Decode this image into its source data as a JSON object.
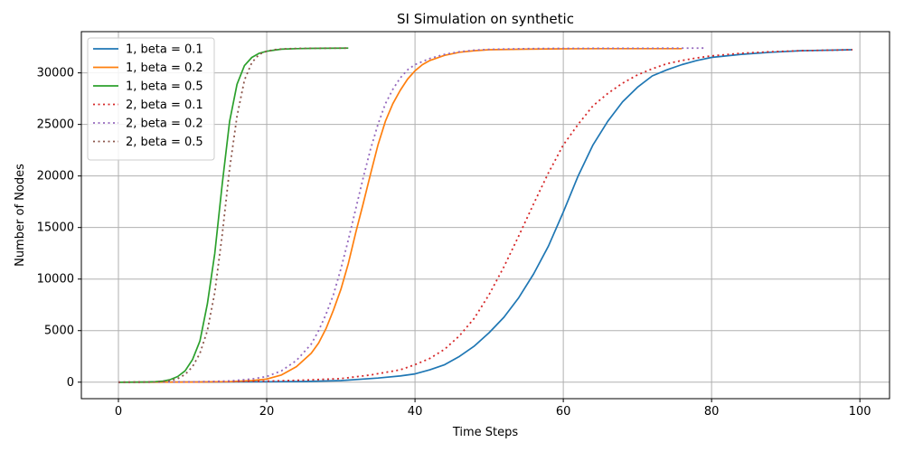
{
  "chart_data": {
    "type": "line",
    "title": "SI Simulation on synthetic",
    "xlabel": "Time Steps",
    "ylabel": "Number of Nodes",
    "xlim": [
      -5,
      104
    ],
    "ylim": [
      -1600,
      34000
    ],
    "xticks": [
      0,
      20,
      40,
      60,
      80,
      100
    ],
    "yticks": [
      0,
      5000,
      10000,
      15000,
      20000,
      25000,
      30000
    ],
    "grid": true,
    "legend_position": "top-left",
    "series": [
      {
        "name": "1, beta = 0.1",
        "color": "#1f77b4",
        "style": "solid",
        "x": [
          0,
          10,
          20,
          25,
          30,
          35,
          38,
          40,
          42,
          44,
          46,
          48,
          50,
          52,
          54,
          56,
          58,
          60,
          62,
          64,
          66,
          68,
          70,
          72,
          74,
          76,
          78,
          80,
          84,
          88,
          92,
          96,
          99
        ],
        "y": [
          0,
          10,
          40,
          70,
          150,
          400,
          600,
          800,
          1200,
          1700,
          2500,
          3500,
          4800,
          6300,
          8200,
          10500,
          13200,
          16500,
          20000,
          23000,
          25300,
          27200,
          28600,
          29700,
          30300,
          30800,
          31200,
          31500,
          31800,
          32000,
          32150,
          32200,
          32250
        ]
      },
      {
        "name": "1, beta = 0.2",
        "color": "#ff7f0e",
        "style": "solid",
        "x": [
          0,
          10,
          15,
          18,
          20,
          22,
          24,
          26,
          27,
          28,
          29,
          30,
          31,
          32,
          33,
          34,
          35,
          36,
          37,
          38,
          39,
          40,
          41,
          42,
          44,
          46,
          48,
          50,
          55,
          60,
          65,
          70,
          76
        ],
        "y": [
          0,
          10,
          50,
          150,
          300,
          700,
          1500,
          2800,
          3800,
          5200,
          7000,
          9000,
          11500,
          14500,
          17300,
          20200,
          23000,
          25300,
          27000,
          28300,
          29400,
          30200,
          30800,
          31200,
          31700,
          32000,
          32150,
          32250,
          32300,
          32330,
          32350,
          32350,
          32350
        ]
      },
      {
        "name": "1, beta = 0.5",
        "color": "#2ca02c",
        "style": "solid",
        "x": [
          0,
          2,
          4,
          5,
          6,
          7,
          8,
          9,
          10,
          11,
          12,
          13,
          14,
          15,
          16,
          17,
          18,
          19,
          20,
          21,
          22,
          24,
          26,
          28,
          31
        ],
        "y": [
          0,
          5,
          20,
          50,
          100,
          250,
          550,
          1100,
          2200,
          4000,
          7600,
          12500,
          19200,
          25300,
          28900,
          30700,
          31500,
          31900,
          32100,
          32200,
          32300,
          32350,
          32380,
          32390,
          32400
        ]
      },
      {
        "name": "2, beta = 0.1",
        "color": "#d62728",
        "style": "dotted",
        "x": [
          0,
          10,
          20,
          25,
          30,
          34,
          38,
          40,
          42,
          44,
          46,
          48,
          50,
          52,
          54,
          56,
          58,
          60,
          62,
          64,
          66,
          68,
          70,
          72,
          74,
          76,
          78,
          80,
          84,
          88,
          92,
          96,
          99
        ],
        "y": [
          0,
          30,
          100,
          200,
          350,
          700,
          1200,
          1700,
          2300,
          3200,
          4500,
          6200,
          8500,
          11200,
          14200,
          17300,
          20300,
          23000,
          25000,
          26800,
          28000,
          29000,
          29800,
          30400,
          30900,
          31200,
          31450,
          31650,
          31900,
          32050,
          32150,
          32200,
          32250
        ]
      },
      {
        "name": "2, beta = 0.2",
        "color": "#9467bd",
        "style": "dotted",
        "x": [
          0,
          10,
          15,
          18,
          20,
          22,
          24,
          26,
          27,
          28,
          29,
          30,
          31,
          32,
          33,
          34,
          35,
          36,
          37,
          38,
          39,
          40,
          42,
          44,
          46,
          48,
          50,
          55,
          60,
          70,
          79
        ],
        "y": [
          0,
          20,
          120,
          300,
          550,
          1100,
          2100,
          3700,
          5000,
          6600,
          8500,
          11000,
          13800,
          16800,
          19800,
          22600,
          25000,
          27000,
          28400,
          29500,
          30300,
          30800,
          31400,
          31800,
          32050,
          32200,
          32280,
          32350,
          32380,
          32390,
          32400
        ]
      },
      {
        "name": "2, beta = 0.5",
        "color": "#8c564b",
        "style": "dotted",
        "x": [
          0,
          4,
          6,
          7,
          8,
          9,
          10,
          11,
          12,
          13,
          14,
          15,
          16,
          17,
          18,
          19,
          20,
          21,
          22,
          24,
          26,
          28,
          31
        ],
        "y": [
          0,
          10,
          60,
          150,
          350,
          750,
          1500,
          2800,
          5000,
          8700,
          14300,
          20700,
          25800,
          29300,
          31000,
          31800,
          32100,
          32250,
          32320,
          32370,
          32390,
          32395,
          32400
        ]
      }
    ]
  }
}
